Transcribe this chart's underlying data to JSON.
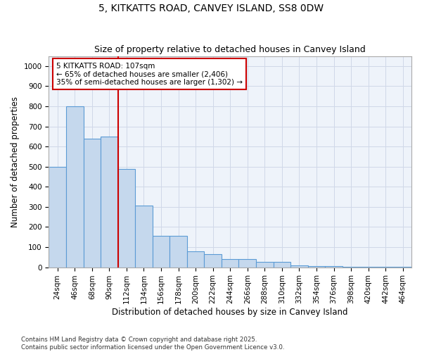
{
  "title": "5, KITKATTS ROAD, CANVEY ISLAND, SS8 0DW",
  "subtitle": "Size of property relative to detached houses in Canvey Island",
  "xlabel": "Distribution of detached houses by size in Canvey Island",
  "ylabel": "Number of detached properties",
  "categories": [
    "24sqm",
    "46sqm",
    "68sqm",
    "90sqm",
    "112sqm",
    "134sqm",
    "156sqm",
    "178sqm",
    "200sqm",
    "222sqm",
    "244sqm",
    "266sqm",
    "288sqm",
    "310sqm",
    "332sqm",
    "354sqm",
    "376sqm",
    "398sqm",
    "420sqm",
    "442sqm",
    "464sqm"
  ],
  "values": [
    500,
    800,
    640,
    650,
    490,
    305,
    155,
    155,
    80,
    65,
    40,
    40,
    25,
    25,
    10,
    5,
    5,
    2,
    1,
    1,
    1
  ],
  "bar_color": "#c5d8ed",
  "bar_edge_color": "#5b9bd5",
  "vline_x": 3.5,
  "vline_color": "#cc0000",
  "annotation_text": "5 KITKATTS ROAD: 107sqm\n← 65% of detached houses are smaller (2,406)\n35% of semi-detached houses are larger (1,302) →",
  "annotation_box_color": "#ffffff",
  "annotation_box_edge": "#cc0000",
  "ylim": [
    0,
    1050
  ],
  "yticks": [
    0,
    100,
    200,
    300,
    400,
    500,
    600,
    700,
    800,
    900,
    1000
  ],
  "title_fontsize": 10,
  "subtitle_fontsize": 9,
  "axis_fontsize": 8.5,
  "tick_fontsize": 7.5,
  "annot_fontsize": 7.5,
  "footnote": "Contains HM Land Registry data © Crown copyright and database right 2025.\nContains public sector information licensed under the Open Government Licence v3.0.",
  "background_color": "#ffffff",
  "plot_bg_color": "#eef3fa",
  "grid_color": "#d0d8e8"
}
